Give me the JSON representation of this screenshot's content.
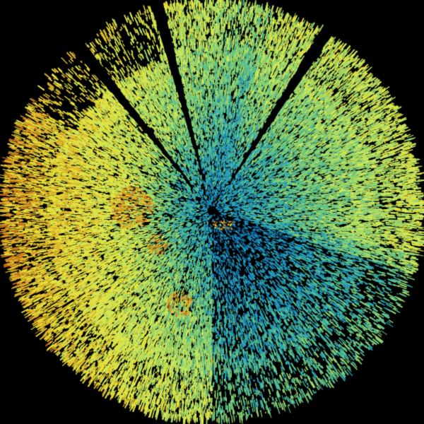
{
  "background": "#000000",
  "colormap": [
    "#0b5f9a",
    "#1a8fc4",
    "#2fa7b8",
    "#5cc48f",
    "#9ad66c",
    "#cfe85a",
    "#e8e23c",
    "#e0b22a",
    "#c8701c"
  ],
  "site_marker_color": "#000000"
}
